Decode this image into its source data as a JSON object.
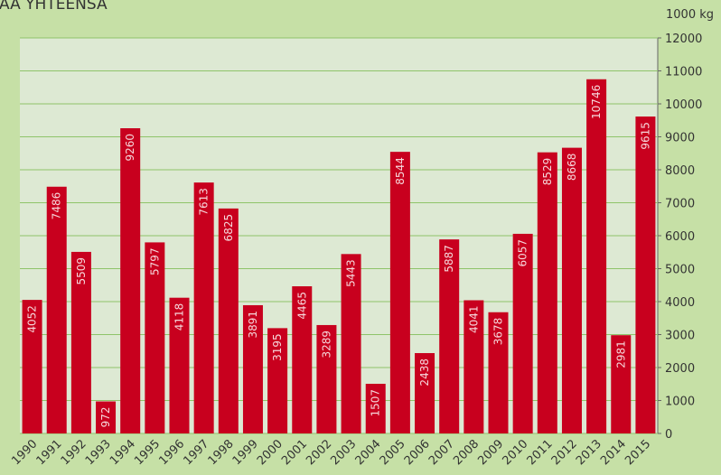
{
  "chart_data": {
    "type": "bar",
    "title": "IAA YHTEENSÄ",
    "y_axis_label": "1000 kg",
    "categories": [
      "1990",
      "1991",
      "1992",
      "1993",
      "1994",
      "1995",
      "1996",
      "1997",
      "1998",
      "1999",
      "2000",
      "2001",
      "2002",
      "2003",
      "2004",
      "2005",
      "2006",
      "2007",
      "2008",
      "2009",
      "2010",
      "2011",
      "2012",
      "2013",
      "2014",
      "2015"
    ],
    "values": [
      4052,
      7486,
      5509,
      972,
      9260,
      5797,
      4118,
      7613,
      6825,
      3891,
      3195,
      4465,
      3289,
      5443,
      1507,
      8544,
      2438,
      5887,
      4041,
      3678,
      6057,
      8529,
      8668,
      10746,
      2981,
      9615
    ],
    "color": "#c8001e",
    "ylim": [
      0,
      12000
    ],
    "yticks": [
      0,
      1000,
      2000,
      3000,
      4000,
      5000,
      6000,
      7000,
      8000,
      9000,
      10000,
      11000,
      12000
    ],
    "grid": true
  }
}
